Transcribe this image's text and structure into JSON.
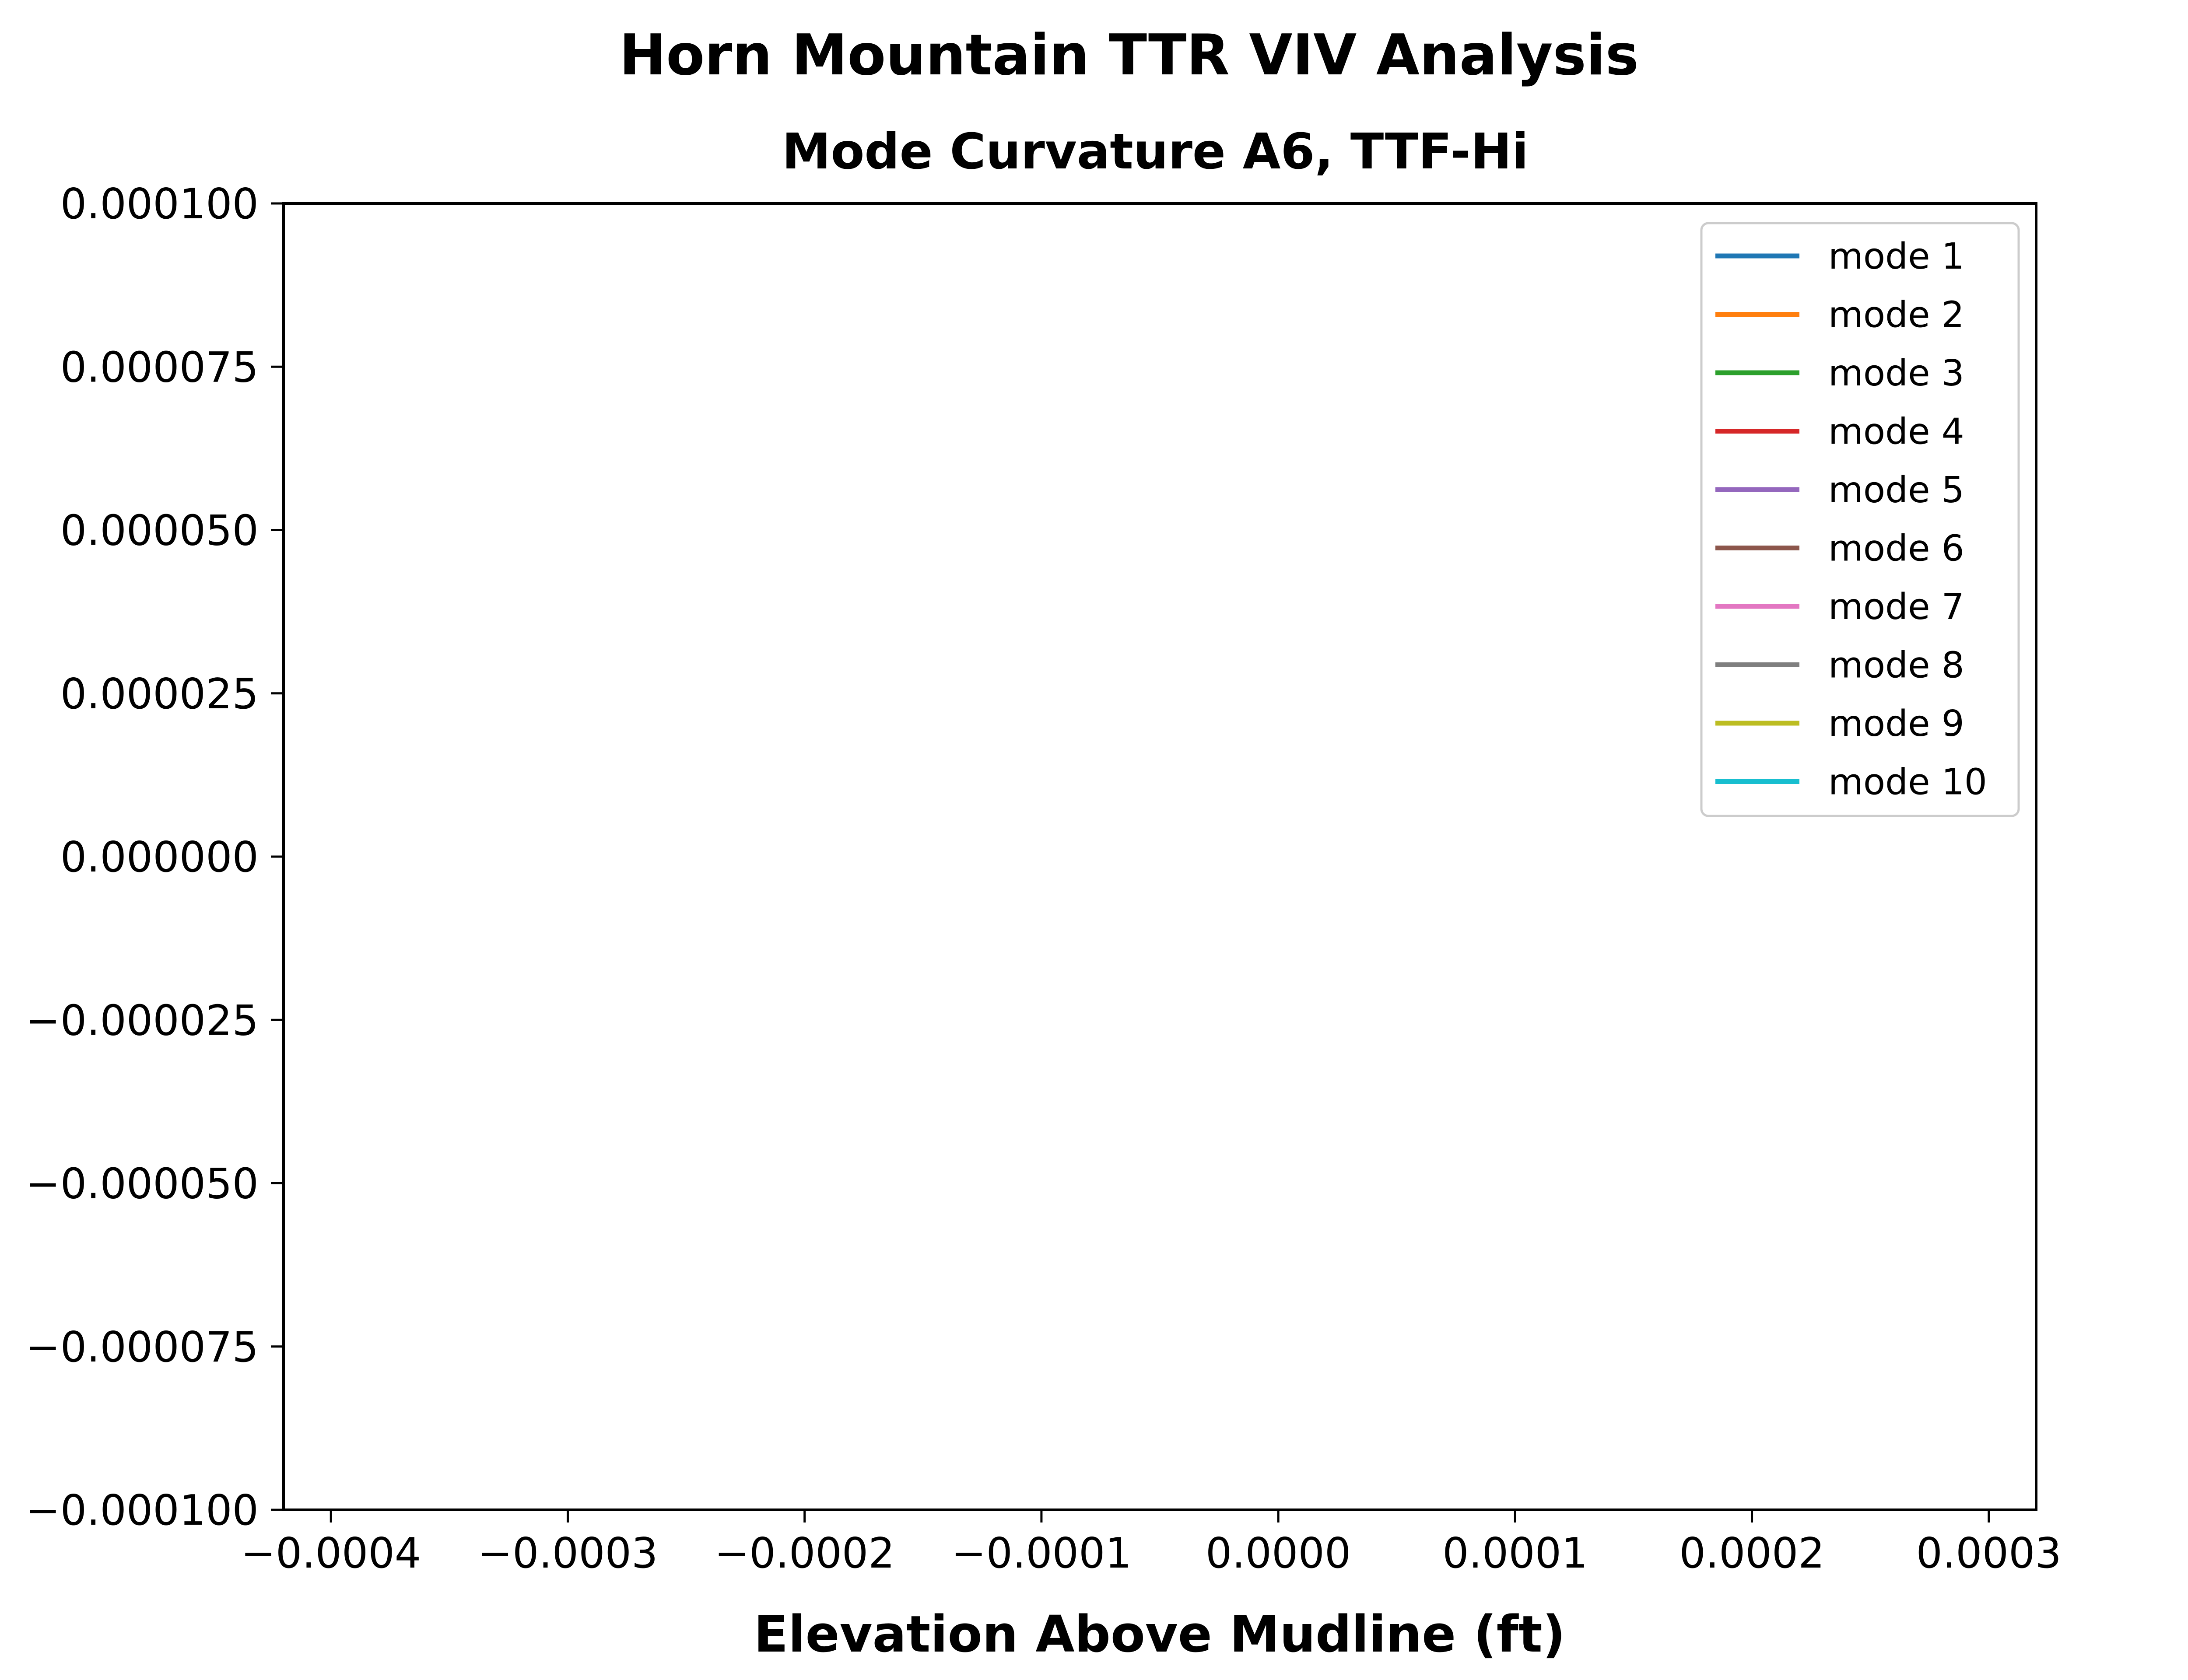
{
  "chart_data": {
    "type": "line",
    "title": "Horn Mountain TTR VIV Analysis",
    "subtitle": "Mode Curvature A6, TTF-Hi",
    "xlabel": "Elevation Above Mudline (ft)",
    "ylabel": "",
    "xlim": [
      -0.00042,
      0.00032
    ],
    "ylim": [
      -0.0001,
      0.0001
    ],
    "xticks": [
      {
        "value": -0.0004,
        "label": "−0.0004"
      },
      {
        "value": -0.0003,
        "label": "−0.0003"
      },
      {
        "value": -0.0002,
        "label": "−0.0002"
      },
      {
        "value": -0.0001,
        "label": "−0.0001"
      },
      {
        "value": 0.0,
        "label": "0.0000"
      },
      {
        "value": 0.0001,
        "label": "0.0001"
      },
      {
        "value": 0.0002,
        "label": "0.0002"
      },
      {
        "value": 0.0003,
        "label": "0.0003"
      }
    ],
    "yticks": [
      {
        "value": 0.0001,
        "label": "0.000100"
      },
      {
        "value": 7.5e-05,
        "label": "0.000075"
      },
      {
        "value": 5e-05,
        "label": "0.000050"
      },
      {
        "value": 2.5e-05,
        "label": "0.000025"
      },
      {
        "value": 0.0,
        "label": "0.000000"
      },
      {
        "value": -2.5e-05,
        "label": "−0.000025"
      },
      {
        "value": -5e-05,
        "label": "−0.000050"
      },
      {
        "value": -7.5e-05,
        "label": "−0.000075"
      },
      {
        "value": -0.0001,
        "label": "−0.000100"
      }
    ],
    "grid": false,
    "legend_position": "top-right",
    "series": [
      {
        "name": "mode 1",
        "color": "#1f77b4",
        "x": [],
        "y": []
      },
      {
        "name": "mode 2",
        "color": "#ff7f0e",
        "x": [],
        "y": []
      },
      {
        "name": "mode 3",
        "color": "#2ca02c",
        "x": [],
        "y": []
      },
      {
        "name": "mode 4",
        "color": "#d62728",
        "x": [],
        "y": []
      },
      {
        "name": "mode 5",
        "color": "#9467bd",
        "x": [],
        "y": []
      },
      {
        "name": "mode 6",
        "color": "#8c564b",
        "x": [],
        "y": []
      },
      {
        "name": "mode 7",
        "color": "#e377c2",
        "x": [],
        "y": []
      },
      {
        "name": "mode 8",
        "color": "#7f7f7f",
        "x": [],
        "y": []
      },
      {
        "name": "mode 9",
        "color": "#bcbd22",
        "x": [],
        "y": []
      },
      {
        "name": "mode 10",
        "color": "#17becf",
        "x": [],
        "y": []
      }
    ]
  }
}
